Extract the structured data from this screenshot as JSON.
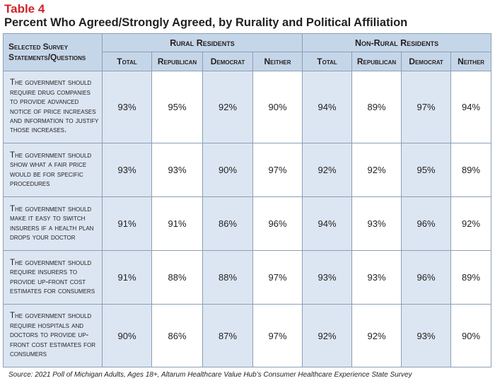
{
  "table_label": "Table 4",
  "title": "Percent Who Agreed/Strongly Agreed, by Rurality and Political Affiliation",
  "corner_header": "Selected Survey Statements/Questions",
  "groups": [
    {
      "label": "Rural Residents"
    },
    {
      "label": "Non-Rural Residents"
    }
  ],
  "subheaders": [
    "Total",
    "Republican",
    "Democrat",
    "Neither",
    "Total",
    "Republican",
    "Democrat",
    "Neither"
  ],
  "rows": [
    {
      "question": "The government should require drug companies to provide advanced notice of price increases and information to justify those increases.",
      "values": [
        "93%",
        "95%",
        "92%",
        "90%",
        "94%",
        "89%",
        "97%",
        "94%"
      ]
    },
    {
      "question": "The government should show what a fair price would be for specific procedures",
      "values": [
        "93%",
        "93%",
        "90%",
        "97%",
        "92%",
        "92%",
        "95%",
        "89%"
      ]
    },
    {
      "question": "The government should make it easy to switch insurers if a health plan drops your doctor",
      "values": [
        "91%",
        "91%",
        "86%",
        "96%",
        "94%",
        "93%",
        "96%",
        "92%"
      ]
    },
    {
      "question": "The government should require insurers to provide up-front cost estimates for consumers",
      "values": [
        "91%",
        "88%",
        "88%",
        "97%",
        "93%",
        "93%",
        "96%",
        "89%"
      ]
    },
    {
      "question": "The government should require hospitals and doctors to provide up-front cost estimates for consumers",
      "values": [
        "90%",
        "86%",
        "87%",
        "97%",
        "92%",
        "92%",
        "93%",
        "90%"
      ]
    }
  ],
  "source": "Source: 2021 Poll of Michigan Adults, Ages 18+, Altarum Healthcare Value Hub’s Consumer Healthcare Experience State Survey"
}
